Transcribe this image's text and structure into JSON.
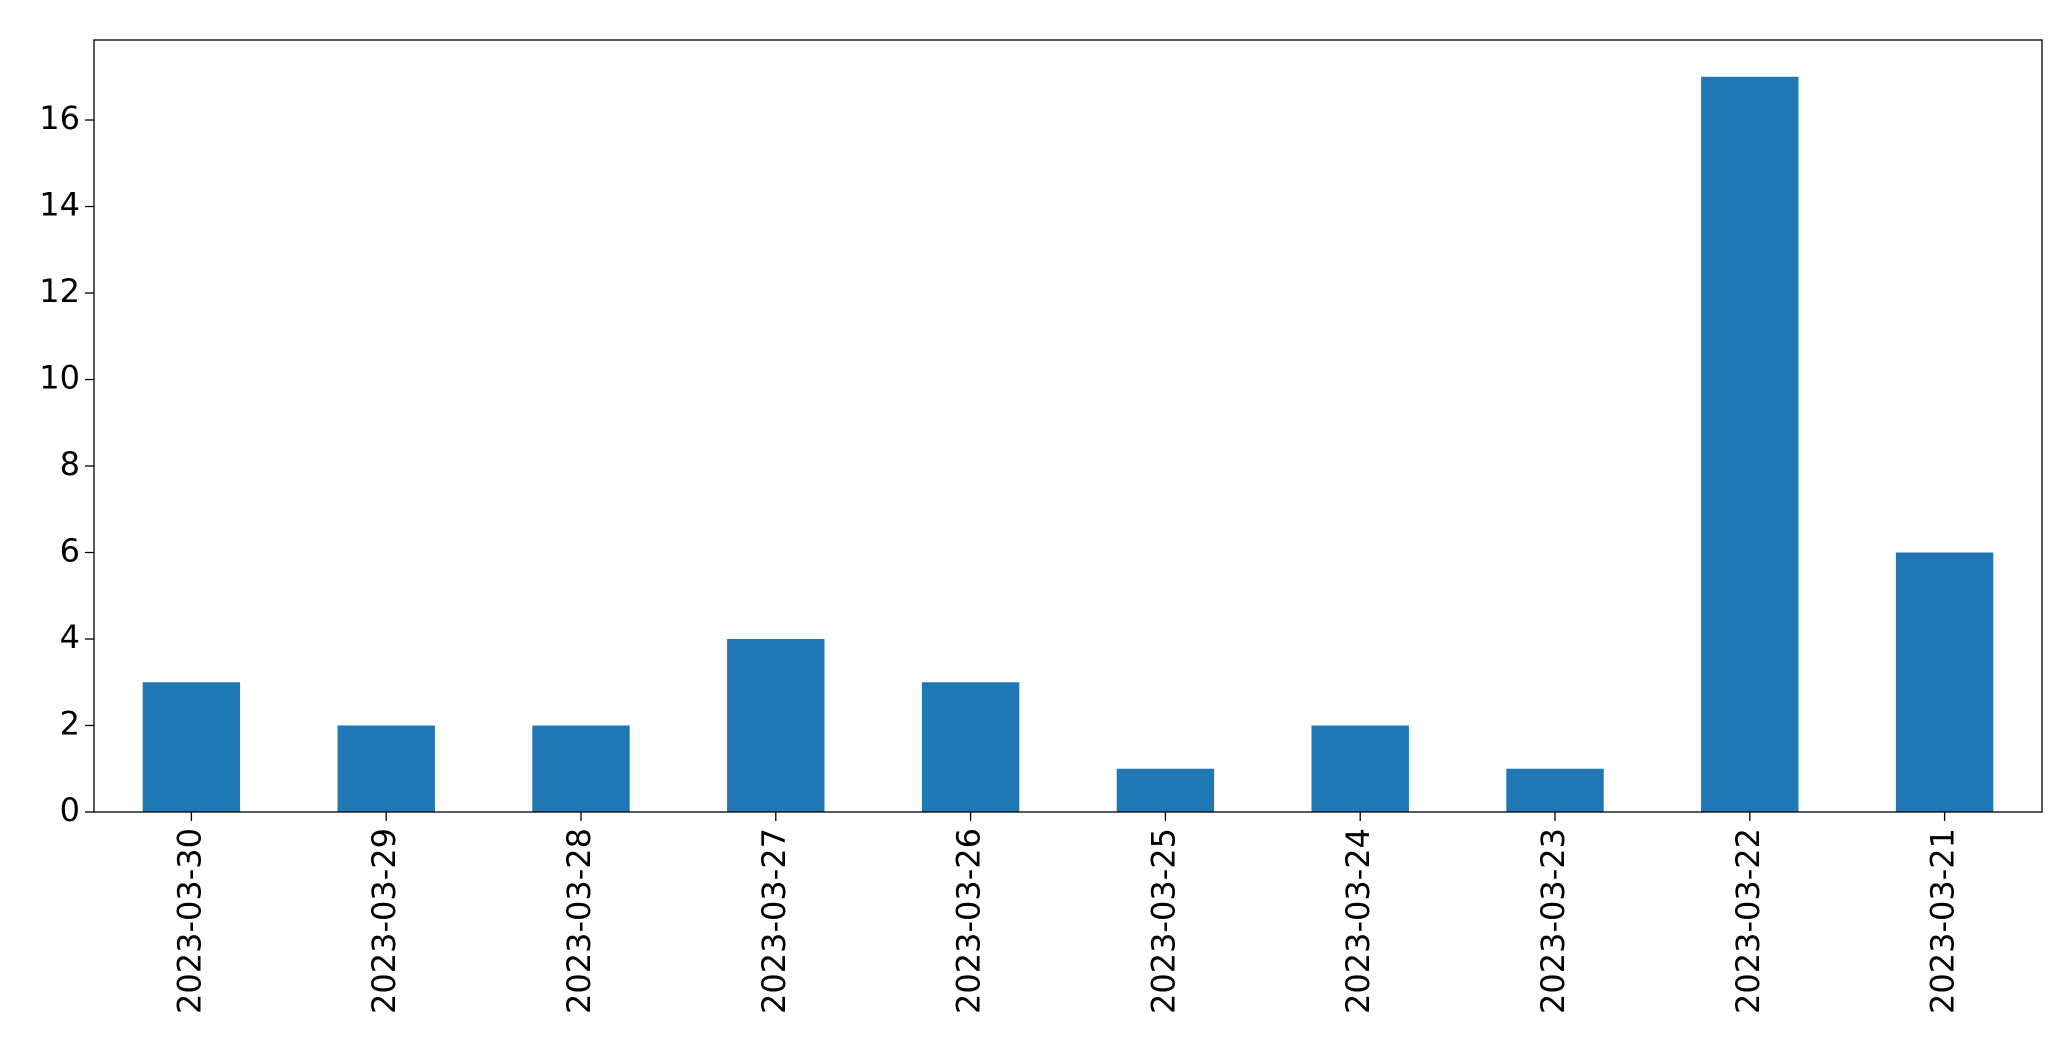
{
  "chart_data": {
    "type": "bar",
    "categories": [
      "2023-03-30",
      "2023-03-29",
      "2023-03-28",
      "2023-03-27",
      "2023-03-26",
      "2023-03-25",
      "2023-03-24",
      "2023-03-23",
      "2023-03-22",
      "2023-03-21"
    ],
    "values": [
      3,
      2,
      2,
      4,
      3,
      1,
      2,
      1,
      17,
      6
    ],
    "color": "#1f77b4",
    "ylim": [
      0,
      17.85
    ],
    "yticks": [
      0,
      2,
      4,
      6,
      8,
      10,
      12,
      14,
      16
    ],
    "grid": false
  }
}
